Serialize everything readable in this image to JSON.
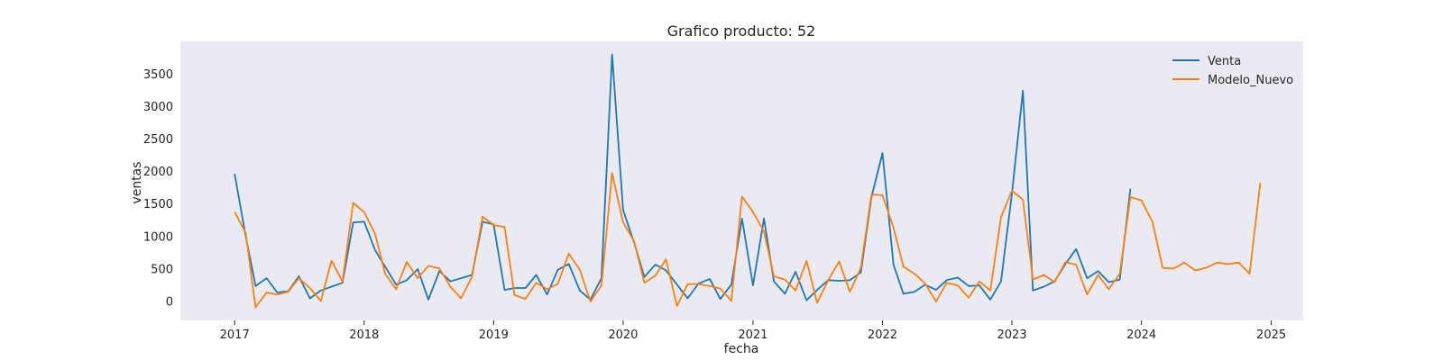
{
  "chart_data": {
    "type": "line",
    "title": "Grafico producto: 52",
    "xlabel": "fecha",
    "ylabel": "ventas",
    "x_range": [
      "2016-08-01",
      "2025-04-01"
    ],
    "ylim": [
      -300,
      4000
    ],
    "x_tick_labels": [
      "2017",
      "2018",
      "2019",
      "2020",
      "2021",
      "2022",
      "2023",
      "2024",
      "2025"
    ],
    "y_tick_values": [
      0,
      500,
      1000,
      1500,
      2000,
      2500,
      3000,
      3500
    ],
    "y_tick_labels": [
      "0",
      "500",
      "1000",
      "1500",
      "2000",
      "2500",
      "3000",
      "3500"
    ],
    "grid": false,
    "background": "#eaeaf2",
    "legend_position": "top-right",
    "series": [
      {
        "name": "Venta",
        "color": "#1f77b4",
        "x": [
          "2017-01",
          "2017-02",
          "2017-03",
          "2017-04",
          "2017-05",
          "2017-06",
          "2017-07",
          "2017-08",
          "2017-09",
          "2017-10",
          "2017-11",
          "2017-12",
          "2018-01",
          "2018-02",
          "2018-03",
          "2018-04",
          "2018-05",
          "2018-06",
          "2018-07",
          "2018-08",
          "2018-09",
          "2018-10",
          "2018-11",
          "2018-12",
          "2019-01",
          "2019-02",
          "2019-03",
          "2019-04",
          "2019-05",
          "2019-06",
          "2019-07",
          "2019-08",
          "2019-09",
          "2019-10",
          "2019-11",
          "2019-12",
          "2020-01",
          "2020-02",
          "2020-03",
          "2020-04",
          "2020-05",
          "2020-06",
          "2020-07",
          "2020-08",
          "2020-09",
          "2020-10",
          "2020-11",
          "2020-12",
          "2021-01",
          "2021-02",
          "2021-03",
          "2021-04",
          "2021-05",
          "2021-06",
          "2021-07",
          "2021-08",
          "2021-09",
          "2021-10",
          "2021-11",
          "2021-12",
          "2022-01",
          "2022-02",
          "2022-03",
          "2022-04",
          "2022-05",
          "2022-06",
          "2022-07",
          "2022-08",
          "2022-09",
          "2022-10",
          "2022-11",
          "2022-12",
          "2023-01",
          "2023-02",
          "2023-03",
          "2023-04",
          "2023-05",
          "2023-06",
          "2023-07",
          "2023-08",
          "2023-09",
          "2023-10",
          "2023-11",
          "2023-12"
        ],
        "values": [
          1960,
          1000,
          230,
          350,
          130,
          150,
          380,
          40,
          160,
          220,
          280,
          1210,
          1220,
          780,
          530,
          250,
          320,
          490,
          20,
          460,
          300,
          350,
          400,
          1220,
          1180,
          170,
          200,
          200,
          400,
          100,
          480,
          570,
          160,
          20,
          350,
          3800,
          1400,
          900,
          370,
          560,
          470,
          250,
          40,
          270,
          340,
          30,
          250,
          1270,
          240,
          1270,
          300,
          110,
          450,
          10,
          170,
          320,
          310,
          320,
          440,
          1600,
          2280,
          560,
          110,
          140,
          250,
          170,
          320,
          360,
          230,
          240,
          20,
          300,
          1650,
          3240,
          160,
          220,
          300,
          570,
          800,
          350,
          460,
          290,
          330,
          1730
        ]
      },
      {
        "name": "Modelo_Nuevo",
        "color": "#ff7f0e",
        "x": [
          "2017-01",
          "2017-02",
          "2017-03",
          "2017-04",
          "2017-05",
          "2017-06",
          "2017-07",
          "2017-08",
          "2017-09",
          "2017-10",
          "2017-11",
          "2017-12",
          "2018-01",
          "2018-02",
          "2018-03",
          "2018-04",
          "2018-05",
          "2018-06",
          "2018-07",
          "2018-08",
          "2018-09",
          "2018-10",
          "2018-11",
          "2018-12",
          "2019-01",
          "2019-02",
          "2019-03",
          "2019-04",
          "2019-05",
          "2019-06",
          "2019-07",
          "2019-08",
          "2019-09",
          "2019-10",
          "2019-11",
          "2019-12",
          "2020-01",
          "2020-02",
          "2020-03",
          "2020-04",
          "2020-05",
          "2020-06",
          "2020-07",
          "2020-08",
          "2020-09",
          "2020-10",
          "2020-11",
          "2020-12",
          "2021-01",
          "2021-02",
          "2021-03",
          "2021-04",
          "2021-05",
          "2021-06",
          "2021-07",
          "2021-08",
          "2021-09",
          "2021-10",
          "2021-11",
          "2021-12",
          "2022-01",
          "2022-02",
          "2022-03",
          "2022-04",
          "2022-05",
          "2022-06",
          "2022-07",
          "2022-08",
          "2022-09",
          "2022-10",
          "2022-11",
          "2022-12",
          "2023-01",
          "2023-02",
          "2023-03",
          "2023-04",
          "2023-05",
          "2023-06",
          "2023-07",
          "2023-08",
          "2023-09",
          "2023-10",
          "2023-11",
          "2023-12",
          "2024-01",
          "2024-02",
          "2024-03",
          "2024-04",
          "2024-05",
          "2024-06",
          "2024-07",
          "2024-08",
          "2024-09",
          "2024-10",
          "2024-11",
          "2024-12"
        ],
        "values": [
          1370,
          1050,
          -100,
          130,
          100,
          140,
          350,
          200,
          0,
          620,
          300,
          1510,
          1370,
          1030,
          420,
          180,
          600,
          350,
          540,
          500,
          220,
          40,
          370,
          1300,
          1170,
          1140,
          90,
          30,
          280,
          180,
          260,
          730,
          480,
          -10,
          240,
          1970,
          1210,
          920,
          280,
          390,
          640,
          -80,
          260,
          260,
          230,
          190,
          0,
          1610,
          1370,
          1070,
          380,
          330,
          160,
          620,
          -30,
          320,
          610,
          140,
          510,
          1640,
          1630,
          1130,
          530,
          420,
          270,
          -10,
          280,
          240,
          50,
          300,
          160,
          1290,
          1700,
          1560,
          330,
          400,
          290,
          600,
          560,
          100,
          400,
          180,
          420,
          1600,
          1550,
          1220,
          510,
          500,
          590,
          470,
          510,
          590,
          570,
          590,
          420,
          1820
        ]
      }
    ]
  }
}
